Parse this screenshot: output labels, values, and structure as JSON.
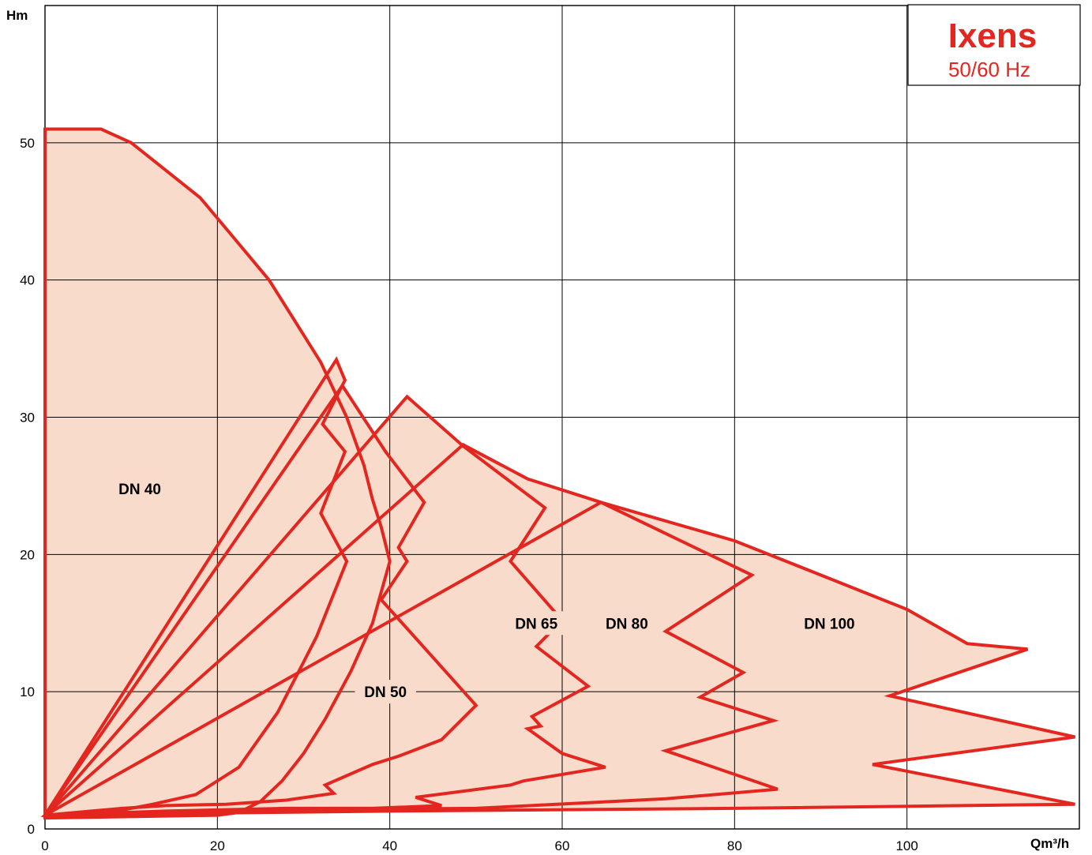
{
  "brand": {
    "name": "Ixens",
    "frequency": "50/60 Hz",
    "color": "#e3261f"
  },
  "colors": {
    "curve": "#e3261f",
    "fill": "#f9dbcb",
    "grid": "#000000"
  },
  "chart_data": {
    "type": "area",
    "title": "",
    "xlabel": "Qm³/h",
    "ylabel": "Hm",
    "xlim": [
      0,
      120
    ],
    "ylim": [
      0,
      60
    ],
    "x_ticks": [
      0,
      20,
      40,
      60,
      80,
      100
    ],
    "y_ticks": [
      0,
      10,
      20,
      30,
      40,
      50
    ],
    "grid": true,
    "series": [
      {
        "name": "DN 40",
        "label_at": [
          11,
          24.8
        ],
        "points": [
          [
            0,
            51
          ],
          [
            6.5,
            51
          ],
          [
            10,
            50
          ],
          [
            14,
            48
          ],
          [
            18,
            46
          ],
          [
            22,
            43
          ],
          [
            26,
            40
          ],
          [
            29,
            37
          ],
          [
            32,
            34
          ],
          [
            35,
            30
          ],
          [
            37,
            26.5
          ],
          [
            38,
            24
          ],
          [
            39,
            22
          ],
          [
            40,
            19.5
          ],
          [
            38,
            15
          ],
          [
            35.5,
            11.5
          ],
          [
            32.5,
            8
          ],
          [
            30,
            5.5
          ],
          [
            27.5,
            3.5
          ],
          [
            25,
            2
          ],
          [
            22.5,
            1.2
          ],
          [
            20,
            1.0
          ],
          [
            0,
            0.8
          ]
        ]
      },
      {
        "name": "DN 50",
        "label_at": [
          39.5,
          10
        ],
        "points": [
          [
            33.8,
            34.2
          ],
          [
            34.8,
            32.7
          ],
          [
            32.2,
            29.5
          ],
          [
            34.8,
            27.5
          ],
          [
            32,
            23
          ],
          [
            35,
            19.5
          ],
          [
            31.5,
            14
          ],
          [
            27,
            8.5
          ],
          [
            22.5,
            4.5
          ],
          [
            17.5,
            2.5
          ],
          [
            12.5,
            1.8
          ],
          [
            7.5,
            1.2
          ],
          [
            0,
            1.0
          ]
        ]
      },
      {
        "name": "DN 65",
        "label_at": [
          57,
          15
        ],
        "points": [
          [
            34.5,
            32.3
          ],
          [
            39.5,
            27.5
          ],
          [
            44,
            23.8
          ],
          [
            41,
            20.5
          ],
          [
            42,
            19.5
          ],
          [
            39,
            16.7
          ],
          [
            45,
            12.5
          ],
          [
            50,
            9
          ],
          [
            46,
            6.5
          ],
          [
            41,
            5.3
          ],
          [
            38,
            4.7
          ],
          [
            32.5,
            3.2
          ],
          [
            33.5,
            2.6
          ],
          [
            28,
            2.1
          ],
          [
            21,
            1.8
          ],
          [
            14,
            1.7
          ],
          [
            9,
            1.5
          ],
          [
            0,
            1.0
          ]
        ]
      },
      {
        "name": "DN 80",
        "label_at": [
          67.5,
          15
        ],
        "points": [
          [
            42,
            31.5
          ],
          [
            48.5,
            27.9
          ],
          [
            58,
            23.4
          ],
          [
            54,
            19.5
          ],
          [
            60,
            15.2
          ],
          [
            57,
            13.3
          ],
          [
            63,
            10.4
          ],
          [
            56.5,
            8.2
          ],
          [
            57.5,
            7.5
          ],
          [
            56,
            7.3
          ],
          [
            60,
            5.5
          ],
          [
            65,
            4.5
          ],
          [
            55.5,
            3.5
          ],
          [
            54,
            3.2
          ],
          [
            43,
            2.3
          ],
          [
            46,
            1.7
          ],
          [
            38,
            1.5
          ],
          [
            28,
            1.5
          ],
          [
            14,
            1.3
          ],
          [
            0,
            1.0
          ]
        ]
      },
      {
        "name": "DN 100",
        "label_at": [
          91,
          15
        ],
        "points": [
          [
            48.5,
            28
          ],
          [
            56,
            25.5
          ],
          [
            64.5,
            23.8
          ],
          [
            82,
            18.5
          ],
          [
            72,
            14.4
          ],
          [
            81,
            11.4
          ],
          [
            76,
            9.6
          ],
          [
            84.5,
            7.9
          ],
          [
            72,
            5.7
          ],
          [
            85,
            2.9
          ],
          [
            72,
            2.2
          ],
          [
            50,
            1.5
          ],
          [
            30,
            1.4
          ],
          [
            10,
            1.2
          ],
          [
            0,
            1.0
          ]
        ]
      },
      {
        "name": "",
        "label_at": null,
        "points": [
          [
            64.5,
            23.8
          ],
          [
            80,
            21
          ],
          [
            90,
            18.5
          ],
          [
            100,
            16
          ],
          [
            107,
            13.5
          ],
          [
            114,
            13.1
          ],
          [
            98,
            9.7
          ],
          [
            119.5,
            6.7
          ],
          [
            96,
            4.7
          ],
          [
            119.5,
            1.8
          ],
          [
            80,
            1.5
          ],
          [
            40,
            1.3
          ],
          [
            10,
            1.1
          ],
          [
            0,
            1.0
          ]
        ]
      }
    ]
  }
}
